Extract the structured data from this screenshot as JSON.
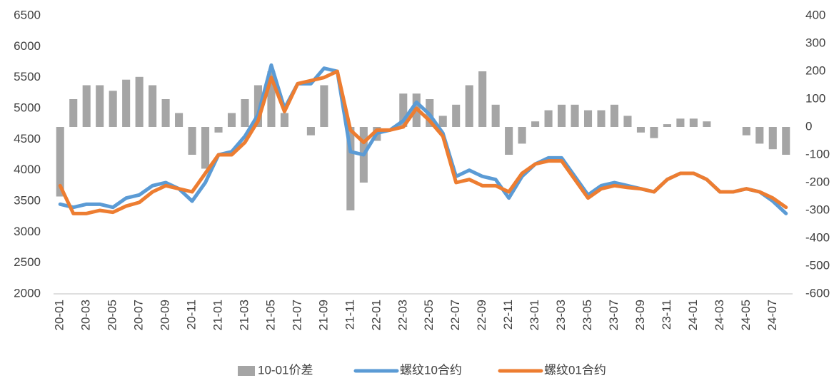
{
  "chart_data": {
    "type": "bar-line",
    "categories": [
      "20-01",
      null,
      "20-03",
      null,
      "20-05",
      null,
      "20-07",
      null,
      "20-09",
      null,
      "20-11",
      null,
      "21-01",
      null,
      "21-03",
      null,
      "21-05",
      null,
      "21-07",
      null,
      "21-09",
      null,
      "21-11",
      null,
      "22-01",
      null,
      "22-03",
      null,
      "22-05",
      null,
      "22-07",
      null,
      "22-09",
      null,
      "22-11",
      null,
      "23-01",
      null,
      "23-03",
      null,
      "23-05",
      null,
      "23-07",
      null,
      "23-09",
      null,
      "23-11",
      null,
      "24-01",
      null,
      "24-03",
      null,
      "24-05",
      null,
      "24-07",
      null
    ],
    "series": [
      {
        "name": "10-01价差",
        "type": "bar",
        "axis": "y2",
        "color": "#a5a5a5",
        "values": [
          -250,
          100,
          150,
          150,
          130,
          170,
          180,
          150,
          100,
          50,
          -100,
          -150,
          -20,
          50,
          100,
          150,
          200,
          50,
          0,
          -30,
          150,
          0,
          -300,
          -200,
          -50,
          0,
          120,
          120,
          100,
          40,
          80,
          150,
          200,
          80,
          -100,
          -60,
          20,
          60,
          80,
          80,
          60,
          60,
          80,
          40,
          -20,
          -40,
          10,
          30,
          30,
          20,
          0,
          0,
          -30,
          -60,
          -80,
          -100
        ]
      },
      {
        "name": "螺纹10合约",
        "type": "line",
        "color": "#5b9bd5",
        "values": [
          3450,
          3400,
          3450,
          3450,
          3400,
          3550,
          3600,
          3750,
          3800,
          3700,
          3500,
          3800,
          4250,
          4300,
          4550,
          4900,
          5700,
          5000,
          5400,
          5400,
          5650,
          5600,
          4300,
          4250,
          4600,
          4650,
          4800,
          5100,
          4900,
          4600,
          3900,
          4000,
          3900,
          3850,
          3550,
          3900,
          4100,
          4200,
          4200,
          3900,
          3600,
          3750,
          3800,
          3750,
          3700,
          3650,
          3850,
          3950,
          3950,
          3850,
          3650,
          3650,
          3700,
          3650,
          3500,
          3300
        ]
      },
      {
        "name": "螺纹01合约",
        "type": "line",
        "color": "#ed7d31",
        "values": [
          3750,
          3300,
          3300,
          3350,
          3320,
          3420,
          3480,
          3650,
          3750,
          3700,
          3650,
          3950,
          4250,
          4250,
          4450,
          4800,
          5500,
          4950,
          5400,
          5450,
          5500,
          5600,
          4650,
          4450,
          4650,
          4650,
          4700,
          5000,
          4800,
          4550,
          3800,
          3850,
          3750,
          3750,
          3650,
          3950,
          4100,
          4150,
          4150,
          3850,
          3550,
          3700,
          3750,
          3720,
          3700,
          3650,
          3850,
          3950,
          3950,
          3850,
          3650,
          3650,
          3700,
          3650,
          3550,
          3400
        ]
      }
    ],
    "ylim": [
      2000,
      6500
    ],
    "yticks": [
      2000,
      2500,
      3000,
      3500,
      4000,
      4500,
      5000,
      5500,
      6000,
      6500
    ],
    "y2lim": [
      -600,
      400
    ],
    "y2ticks": [
      -600,
      -500,
      -400,
      -300,
      -200,
      -100,
      0,
      100,
      200,
      300,
      400
    ],
    "grid": false,
    "legend": "bottom"
  }
}
